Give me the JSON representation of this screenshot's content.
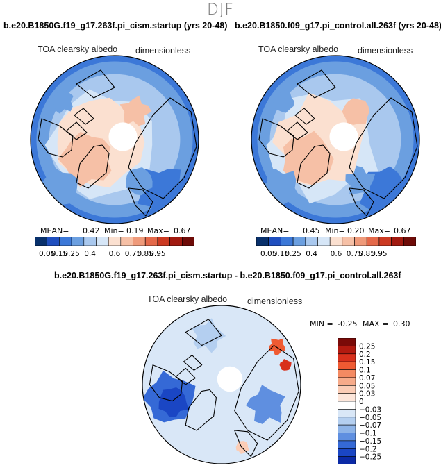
{
  "season": "DJF",
  "chart_data": [
    {
      "type": "heatmap",
      "projection": "north polar stereographic",
      "title": "b.e20.B1850G.f19_g17.263f.pi_cism.startup (yrs 20-48)",
      "variable": "TOA clearsky albedo",
      "units": "dimensionless",
      "stats": {
        "mean_label": "MEAN=",
        "mean": "0.42",
        "min_label": "Min=",
        "min": "0.19",
        "max_label": "Max=",
        "max": "0.67"
      },
      "colorbar": {
        "orientation": "horizontal",
        "levels": [
          "0.05",
          "0.15",
          "0.25",
          "0.4",
          "0.6",
          "0.75",
          "0.85",
          "0.95"
        ],
        "colors": [
          "#08306b",
          "#1f4fbf",
          "#3c78d8",
          "#6b9fe0",
          "#a9c8ee",
          "#d6e6f7",
          "#fbe0d0",
          "#f6c0a6",
          "#ef9a7a",
          "#e4694a",
          "#cc3a22",
          "#a11a10",
          "#6e0b07"
        ]
      }
    },
    {
      "type": "heatmap",
      "projection": "north polar stereographic",
      "title": "b.e20.B1850.f09_g17.pi_control.all.263f (yrs 20-48)",
      "variable": "TOA clearsky albedo",
      "units": "dimensionless",
      "stats": {
        "mean_label": "MEAN=",
        "mean": "0.45",
        "min_label": "Min=",
        "min": "0.20",
        "max_label": "Max=",
        "max": "0.67"
      },
      "colorbar": {
        "orientation": "horizontal",
        "levels": [
          "0.05",
          "0.15",
          "0.25",
          "0.4",
          "0.6",
          "0.75",
          "0.85",
          "0.95"
        ],
        "colors": [
          "#08306b",
          "#1f4fbf",
          "#3c78d8",
          "#6b9fe0",
          "#a9c8ee",
          "#d6e6f7",
          "#fbe0d0",
          "#f6c0a6",
          "#ef9a7a",
          "#e4694a",
          "#cc3a22",
          "#a11a10",
          "#6e0b07"
        ]
      }
    },
    {
      "type": "heatmap",
      "projection": "north polar stereographic",
      "title": "b.e20.B1850G.f19_g17.263f.pi_cism.startup - b.e20.B1850.f09_g17.pi_control.all.263f",
      "variable": "TOA clearsky albedo",
      "units": "dimensionless",
      "stats": {
        "min_label": "MIN =",
        "min": "-0.25",
        "max_label": "MAX =",
        "max": "0.30"
      },
      "colorbar": {
        "orientation": "vertical",
        "levels": [
          "0.25",
          "0.2",
          "0.15",
          "0.1",
          "0.07",
          "0.05",
          "0.03",
          "0",
          "−0.03",
          "−0.05",
          "−0.07",
          "−0.1",
          "−0.15",
          "−0.2",
          "−0.25"
        ],
        "colors": [
          "#7a0a08",
          "#b21a10",
          "#d8301c",
          "#ef5a32",
          "#f48a62",
          "#f7ab8a",
          "#fbcdb6",
          "#fde6da",
          "#ffffff",
          "#d9e7f7",
          "#b4cff0",
          "#8eb4e8",
          "#5f8fe0",
          "#3569d6",
          "#1a46c4",
          "#0b2aa6"
        ]
      }
    }
  ]
}
